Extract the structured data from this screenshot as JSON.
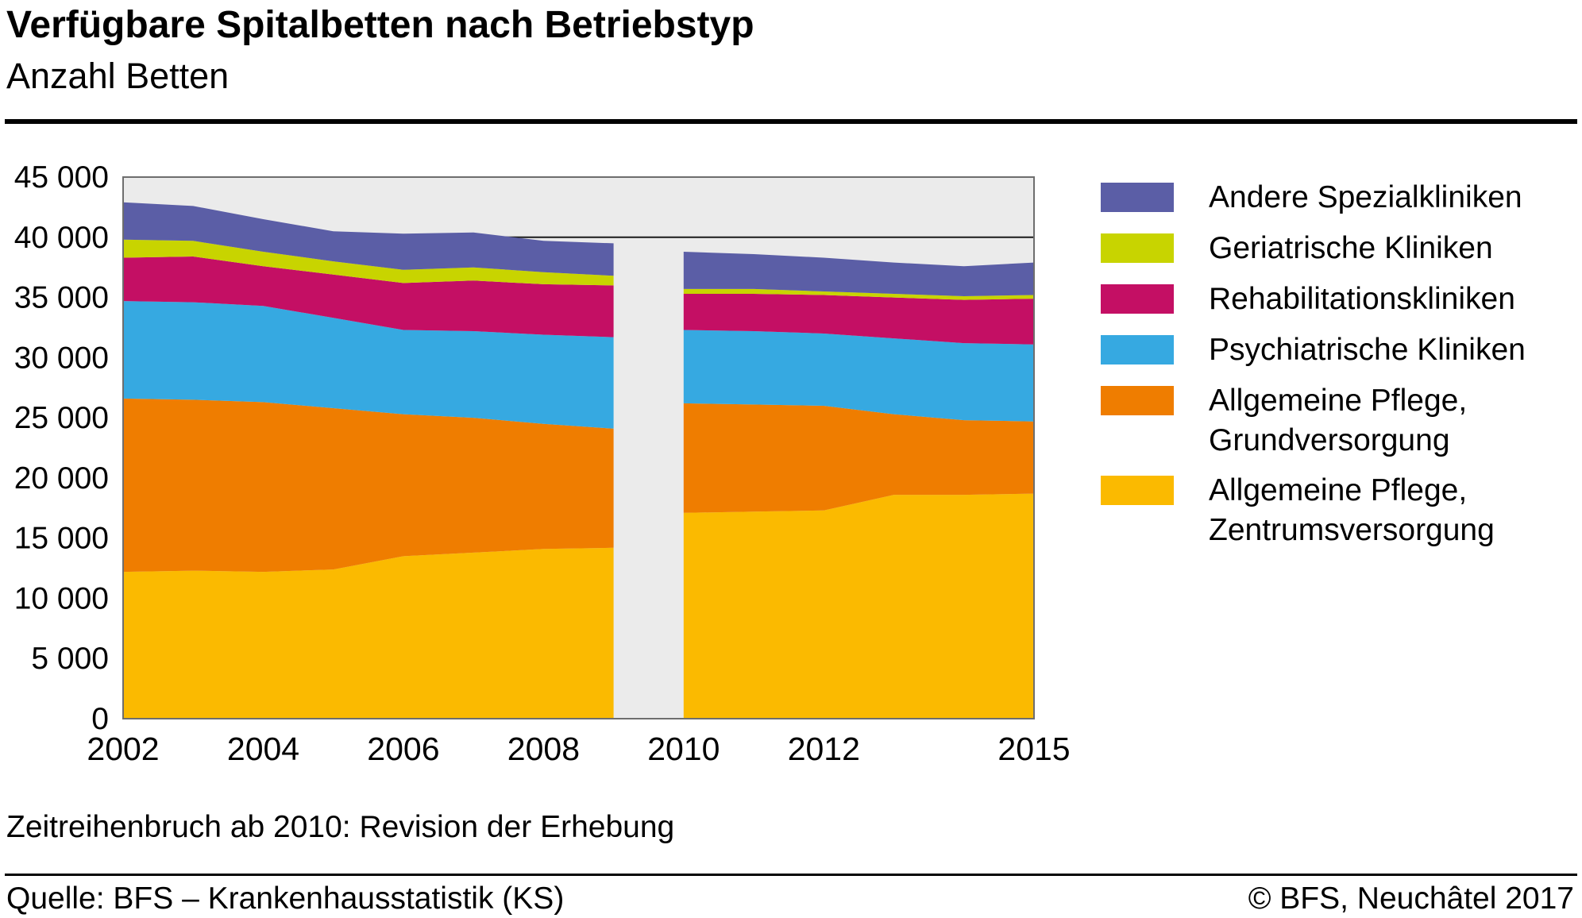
{
  "header": {
    "title": "Verfügbare Spitalbetten nach Betriebstyp",
    "subtitle": "Anzahl Betten"
  },
  "footnote": "Zeitreihenbruch ab 2010: Revision der Erhebung",
  "footer": {
    "source": "Quelle: BFS – Krankenhausstatistik (KS)",
    "copyright": "© BFS, Neuchâtel 2017"
  },
  "chart_data": {
    "type": "area",
    "stacked": true,
    "title": "Verfügbare Spitalbetten nach Betriebstyp",
    "ylabel": "Anzahl Betten",
    "xlim": [
      2002,
      2015
    ],
    "ylim": [
      0,
      45000
    ],
    "plot_bg": "#ebebeb",
    "reference_line": {
      "value": 40000
    },
    "series_break": "Lücke zwischen 2009 und 2010 (Zeitreihenbruch)",
    "y_ticks": [
      {
        "value": 0,
        "label": "0"
      },
      {
        "value": 5000,
        "label": "5 000"
      },
      {
        "value": 10000,
        "label": "10 000"
      },
      {
        "value": 15000,
        "label": "15 000"
      },
      {
        "value": 20000,
        "label": "20 000"
      },
      {
        "value": 25000,
        "label": "25 000"
      },
      {
        "value": 30000,
        "label": "30 000"
      },
      {
        "value": 35000,
        "label": "35 000"
      },
      {
        "value": 40000,
        "label": "40 000"
      },
      {
        "value": 45000,
        "label": "45 000"
      }
    ],
    "x_ticks": [
      {
        "value": 2002,
        "label": "2002"
      },
      {
        "value": 2004,
        "label": "2004"
      },
      {
        "value": 2006,
        "label": "2006"
      },
      {
        "value": 2008,
        "label": "2008"
      },
      {
        "value": 2010,
        "label": "2010"
      },
      {
        "value": 2012,
        "label": "2012"
      },
      {
        "value": 2015,
        "label": "2015"
      }
    ],
    "segment_years": [
      [
        2002,
        2003,
        2004,
        2005,
        2006,
        2007,
        2008,
        2009
      ],
      [
        2010,
        2011,
        2012,
        2013,
        2014,
        2015
      ]
    ],
    "series": [
      {
        "name": "Allgemeine Pflege, Zentrumsversorgung",
        "color": "#fbba00",
        "segments": [
          [
            12200,
            12300,
            12200,
            12400,
            13500,
            13800,
            14100,
            14200
          ],
          [
            17100,
            17200,
            17300,
            18600,
            18600,
            18700
          ]
        ]
      },
      {
        "name": "Allgemeine Pflege, Grundversorgung",
        "color": "#ef7d00",
        "segments": [
          [
            14400,
            14200,
            14100,
            13400,
            11800,
            11200,
            10400,
            9900
          ],
          [
            9100,
            8900,
            8700,
            6700,
            6200,
            6000
          ]
        ]
      },
      {
        "name": "Psychiatrische Kliniken",
        "color": "#36a9e1",
        "segments": [
          [
            8100,
            8100,
            8000,
            7500,
            7000,
            7200,
            7400,
            7600
          ],
          [
            6100,
            6100,
            6000,
            6300,
            6400,
            6400
          ]
        ]
      },
      {
        "name": "Rehabilitationskliniken",
        "color": "#c40f64",
        "segments": [
          [
            3600,
            3800,
            3300,
            3600,
            3900,
            4200,
            4200,
            4300
          ],
          [
            3000,
            3100,
            3200,
            3400,
            3600,
            3800
          ]
        ]
      },
      {
        "name": "Geriatrische Kliniken",
        "color": "#c8d400",
        "segments": [
          [
            1500,
            1300,
            1200,
            1100,
            1100,
            1100,
            1000,
            800
          ],
          [
            400,
            400,
            300,
            300,
            300,
            300
          ]
        ]
      },
      {
        "name": "Andere Spezialkliniken",
        "color": "#5b5ea6",
        "segments": [
          [
            3100,
            2900,
            2700,
            2500,
            3000,
            2900,
            2600,
            2700
          ],
          [
            3100,
            2900,
            2800,
            2600,
            2500,
            2700
          ]
        ]
      }
    ],
    "legend": [
      {
        "label": "Andere Spezialkliniken",
        "color": "#5b5ea6"
      },
      {
        "label": "Geriatrische Kliniken",
        "color": "#c8d400"
      },
      {
        "label": "Rehabilitationskliniken",
        "color": "#c40f64"
      },
      {
        "label": "Psychiatrische Kliniken",
        "color": "#36a9e1"
      },
      {
        "label": "Allgemeine Pflege,\nGrundversorgung",
        "color": "#ef7d00"
      },
      {
        "label": "Allgemeine Pflege,\nZentrumsversorgung",
        "color": "#fbba00"
      }
    ]
  }
}
